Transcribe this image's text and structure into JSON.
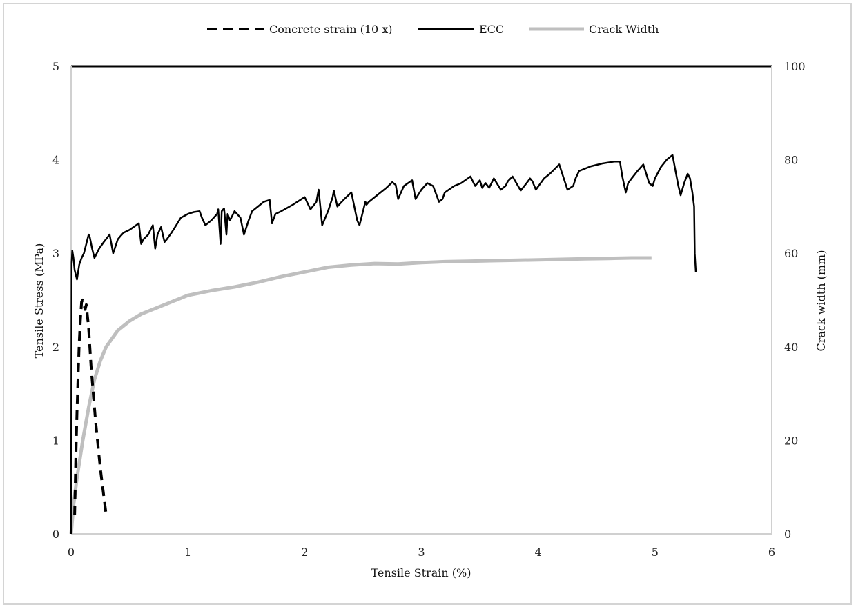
{
  "chart_data": {
    "type": "line",
    "xlabel": "Tensile Strain (%)",
    "ylabel": "Tensile Stress (MPa)",
    "y2label": "Crack width (mm)",
    "xlim": [
      0,
      6
    ],
    "ylim": [
      0,
      5
    ],
    "y2lim": [
      0,
      100
    ],
    "x_ticks": [
      "0",
      "1",
      "2",
      "3",
      "4",
      "5",
      "6"
    ],
    "y_ticks": [
      "0",
      "1",
      "2",
      "3",
      "4",
      "5"
    ],
    "y2_ticks": [
      "0",
      "20",
      "40",
      "60",
      "80",
      "100"
    ],
    "grid": false,
    "legend_position": "top",
    "series": [
      {
        "name": "Concrete strain (10 x)",
        "axis": "left",
        "color": "#000000",
        "style": "dashed",
        "x": [
          0.03,
          0.04,
          0.05,
          0.06,
          0.07,
          0.08,
          0.09,
          0.1,
          0.11,
          0.12,
          0.13,
          0.15,
          0.17,
          0.19,
          0.21,
          0.23,
          0.25,
          0.27,
          0.29,
          0.3
        ],
        "y": [
          0.2,
          0.8,
          1.3,
          1.7,
          2.05,
          2.3,
          2.48,
          2.5,
          2.45,
          2.4,
          2.45,
          2.2,
          1.8,
          1.5,
          1.2,
          0.95,
          0.7,
          0.5,
          0.3,
          0.2
        ]
      },
      {
        "name": "ECC",
        "axis": "left",
        "color": "#000000",
        "style": "solid",
        "x": [
          0.0,
          0.005,
          0.01,
          0.02,
          0.03,
          0.05,
          0.07,
          0.09,
          0.11,
          0.13,
          0.15,
          0.16,
          0.18,
          0.2,
          0.22,
          0.24,
          0.28,
          0.33,
          0.36,
          0.4,
          0.42,
          0.45,
          0.5,
          0.58,
          0.6,
          0.62,
          0.66,
          0.7,
          0.72,
          0.74,
          0.77,
          0.8,
          0.82,
          0.86,
          0.9,
          0.94,
          0.97,
          1.0,
          1.05,
          1.1,
          1.12,
          1.15,
          1.2,
          1.25,
          1.26,
          1.28,
          1.29,
          1.31,
          1.33,
          1.34,
          1.36,
          1.4,
          1.45,
          1.48,
          1.52,
          1.55,
          1.6,
          1.65,
          1.7,
          1.72,
          1.75,
          1.8,
          1.9,
          2.0,
          2.05,
          2.1,
          2.12,
          2.15,
          2.2,
          2.24,
          2.25,
          2.28,
          2.34,
          2.4,
          2.45,
          2.47,
          2.5,
          2.52,
          2.53,
          2.55,
          2.62,
          2.7,
          2.75,
          2.78,
          2.8,
          2.85,
          2.92,
          2.95,
          3.0,
          3.05,
          3.1,
          3.15,
          3.18,
          3.2,
          3.28,
          3.34,
          3.42,
          3.46,
          3.5,
          3.52,
          3.55,
          3.58,
          3.62,
          3.68,
          3.72,
          3.74,
          3.78,
          3.85,
          3.9,
          3.93,
          3.95,
          3.98,
          4.05,
          4.1,
          4.14,
          4.18,
          4.25,
          4.3,
          4.32,
          4.35,
          4.45,
          4.55,
          4.65,
          4.7,
          4.72,
          4.75,
          4.77,
          4.8,
          4.85,
          4.9,
          4.95,
          4.98,
          5.0,
          5.05,
          5.1,
          5.15,
          5.2,
          5.22,
          5.25,
          5.28,
          5.3,
          5.32,
          5.335,
          5.34,
          5.345,
          5.35
        ],
        "y": [
          0.0,
          2.9,
          3.03,
          2.95,
          2.82,
          2.72,
          2.88,
          2.95,
          3.0,
          3.1,
          3.2,
          3.17,
          3.05,
          2.95,
          3.0,
          3.05,
          3.12,
          3.2,
          3.0,
          3.15,
          3.18,
          3.22,
          3.25,
          3.32,
          3.1,
          3.15,
          3.2,
          3.3,
          3.05,
          3.2,
          3.28,
          3.12,
          3.15,
          3.22,
          3.3,
          3.38,
          3.4,
          3.42,
          3.44,
          3.45,
          3.38,
          3.3,
          3.35,
          3.42,
          3.47,
          3.1,
          3.45,
          3.48,
          3.2,
          3.42,
          3.35,
          3.45,
          3.38,
          3.2,
          3.35,
          3.45,
          3.5,
          3.55,
          3.57,
          3.32,
          3.42,
          3.45,
          3.52,
          3.6,
          3.47,
          3.55,
          3.68,
          3.3,
          3.45,
          3.6,
          3.67,
          3.5,
          3.58,
          3.65,
          3.35,
          3.3,
          3.45,
          3.55,
          3.52,
          3.55,
          3.62,
          3.7,
          3.76,
          3.73,
          3.58,
          3.72,
          3.78,
          3.58,
          3.68,
          3.75,
          3.72,
          3.55,
          3.58,
          3.65,
          3.72,
          3.75,
          3.82,
          3.72,
          3.78,
          3.7,
          3.75,
          3.7,
          3.8,
          3.68,
          3.72,
          3.77,
          3.82,
          3.67,
          3.75,
          3.8,
          3.77,
          3.68,
          3.8,
          3.85,
          3.9,
          3.95,
          3.68,
          3.72,
          3.8,
          3.88,
          3.93,
          3.96,
          3.98,
          3.98,
          3.82,
          3.65,
          3.75,
          3.8,
          3.88,
          3.95,
          3.75,
          3.72,
          3.8,
          3.92,
          4.0,
          4.05,
          3.72,
          3.62,
          3.75,
          3.85,
          3.8,
          3.65,
          3.5,
          3.0,
          2.9,
          2.8
        ]
      },
      {
        "name": "Crack Width",
        "axis": "right",
        "color": "#bfbfbf",
        "style": "solid",
        "x": [
          0.0,
          0.02,
          0.05,
          0.1,
          0.15,
          0.2,
          0.25,
          0.3,
          0.4,
          0.5,
          0.6,
          0.8,
          1.0,
          1.2,
          1.4,
          1.6,
          1.8,
          2.0,
          2.2,
          2.4,
          2.6,
          2.8,
          3.0,
          3.2,
          3.4,
          3.6,
          3.8,
          4.0,
          4.2,
          4.4,
          4.6,
          4.8,
          4.97
        ],
        "y": [
          0.0,
          6.0,
          12.0,
          20.0,
          27.0,
          33.0,
          37.0,
          40.0,
          43.5,
          45.5,
          47.0,
          49.0,
          51.0,
          52.0,
          52.8,
          53.8,
          55.0,
          56.0,
          57.0,
          57.5,
          57.8,
          57.7,
          58.0,
          58.2,
          58.3,
          58.4,
          58.5,
          58.6,
          58.7,
          58.8,
          58.9,
          59.0,
          59.0
        ]
      }
    ]
  }
}
